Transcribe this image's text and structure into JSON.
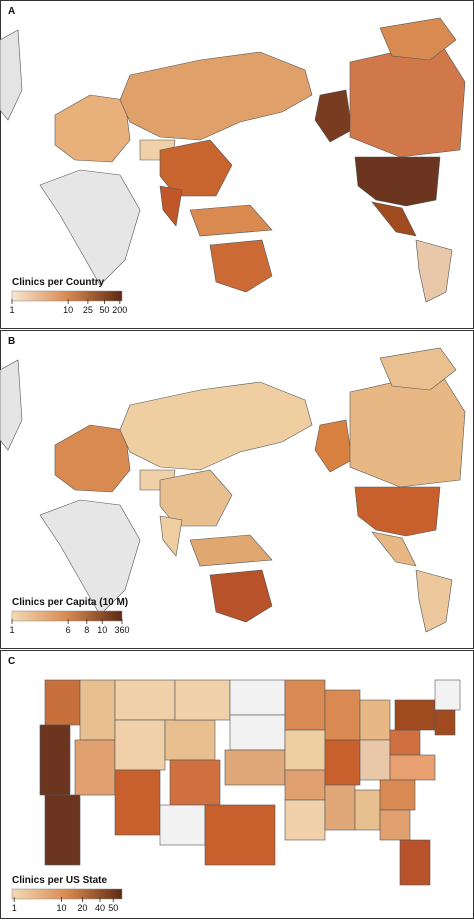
{
  "panels": [
    {
      "label": "A",
      "legend": {
        "title": "Clinics per Country",
        "ticks": [
          1,
          10,
          25,
          50,
          200
        ]
      }
    },
    {
      "label": "B",
      "legend": {
        "title": "Clinics per Capita (10 M)",
        "ticks": [
          1,
          6,
          8,
          10,
          360
        ]
      }
    },
    {
      "label": "C",
      "legend": {
        "title": "Clinics per US State",
        "ticks": [
          1,
          10,
          20,
          40,
          50
        ]
      }
    }
  ]
}
